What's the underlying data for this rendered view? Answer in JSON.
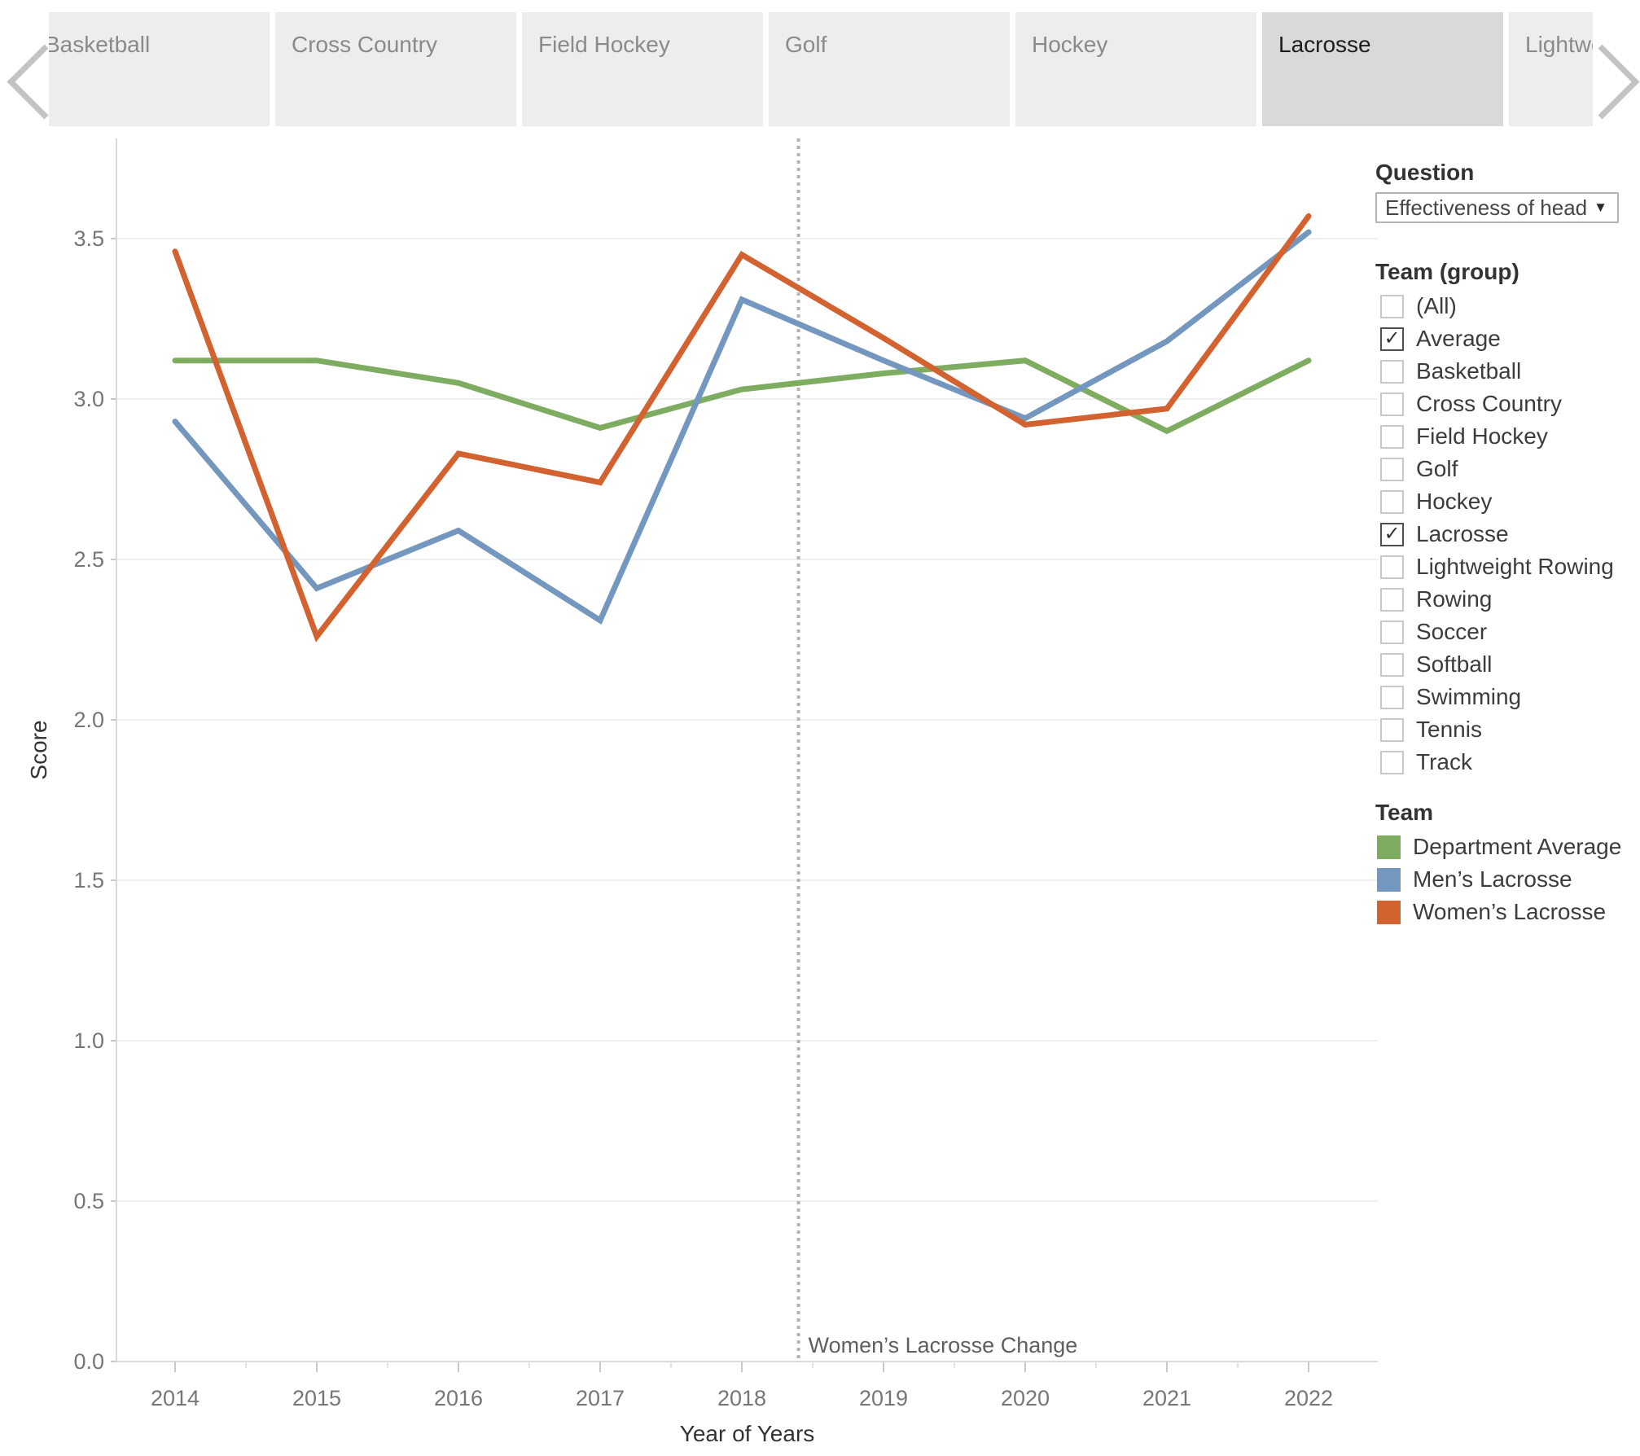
{
  "tabs": {
    "items": [
      {
        "label": "Basketball",
        "selected": false
      },
      {
        "label": "Cross Country",
        "selected": false
      },
      {
        "label": "Field Hockey",
        "selected": false
      },
      {
        "label": "Golf",
        "selected": false
      },
      {
        "label": "Hockey",
        "selected": false
      },
      {
        "label": "Lacrosse",
        "selected": true
      },
      {
        "label": "Lightweight Rowing",
        "selected": false
      }
    ]
  },
  "panel": {
    "question": {
      "header": "Question",
      "selected_value": "Effectiveness of head ...",
      "caret": "▼"
    },
    "team_group": {
      "header": "Team (group)",
      "check_glyph": "✓",
      "options": [
        {
          "label": "(All)",
          "checked": false
        },
        {
          "label": "Average",
          "checked": true
        },
        {
          "label": "Basketball",
          "checked": false
        },
        {
          "label": "Cross Country",
          "checked": false
        },
        {
          "label": "Field Hockey",
          "checked": false
        },
        {
          "label": "Golf",
          "checked": false
        },
        {
          "label": "Hockey",
          "checked": false
        },
        {
          "label": "Lacrosse",
          "checked": true
        },
        {
          "label": "Lightweight Rowing",
          "checked": false
        },
        {
          "label": "Rowing",
          "checked": false
        },
        {
          "label": "Soccer",
          "checked": false
        },
        {
          "label": "Softball",
          "checked": false
        },
        {
          "label": "Swimming",
          "checked": false
        },
        {
          "label": "Tennis",
          "checked": false
        },
        {
          "label": "Track",
          "checked": false
        }
      ]
    },
    "legend": {
      "header": "Team"
    }
  },
  "chart_data": {
    "type": "line",
    "x": [
      2014,
      2015,
      2016,
      2017,
      2018,
      2019,
      2020,
      2021,
      2022
    ],
    "series": [
      {
        "name": "Department Average",
        "color": "#7ead62",
        "values": [
          3.12,
          3.12,
          3.05,
          2.91,
          3.03,
          3.08,
          3.12,
          2.9,
          3.12
        ]
      },
      {
        "name": "Men’s Lacrosse",
        "color": "#7397be",
        "values": [
          2.93,
          2.41,
          2.59,
          2.31,
          3.31,
          3.12,
          2.94,
          3.18,
          3.52
        ]
      },
      {
        "name": "Women’s Lacrosse",
        "color": "#d2622f",
        "values": [
          3.46,
          2.26,
          2.83,
          2.74,
          3.45,
          3.19,
          2.92,
          2.97,
          3.57
        ]
      }
    ],
    "xlabel": "Year of Years",
    "ylabel": "Score",
    "ylim": [
      0.0,
      3.8
    ],
    "yticks": [
      0.0,
      0.5,
      1.0,
      1.5,
      2.0,
      2.5,
      3.0,
      3.5
    ],
    "grid": "horizontal",
    "legend_position": "right",
    "annotation": {
      "label": "Women’s Lacrosse Change",
      "x": 2018.4
    }
  }
}
